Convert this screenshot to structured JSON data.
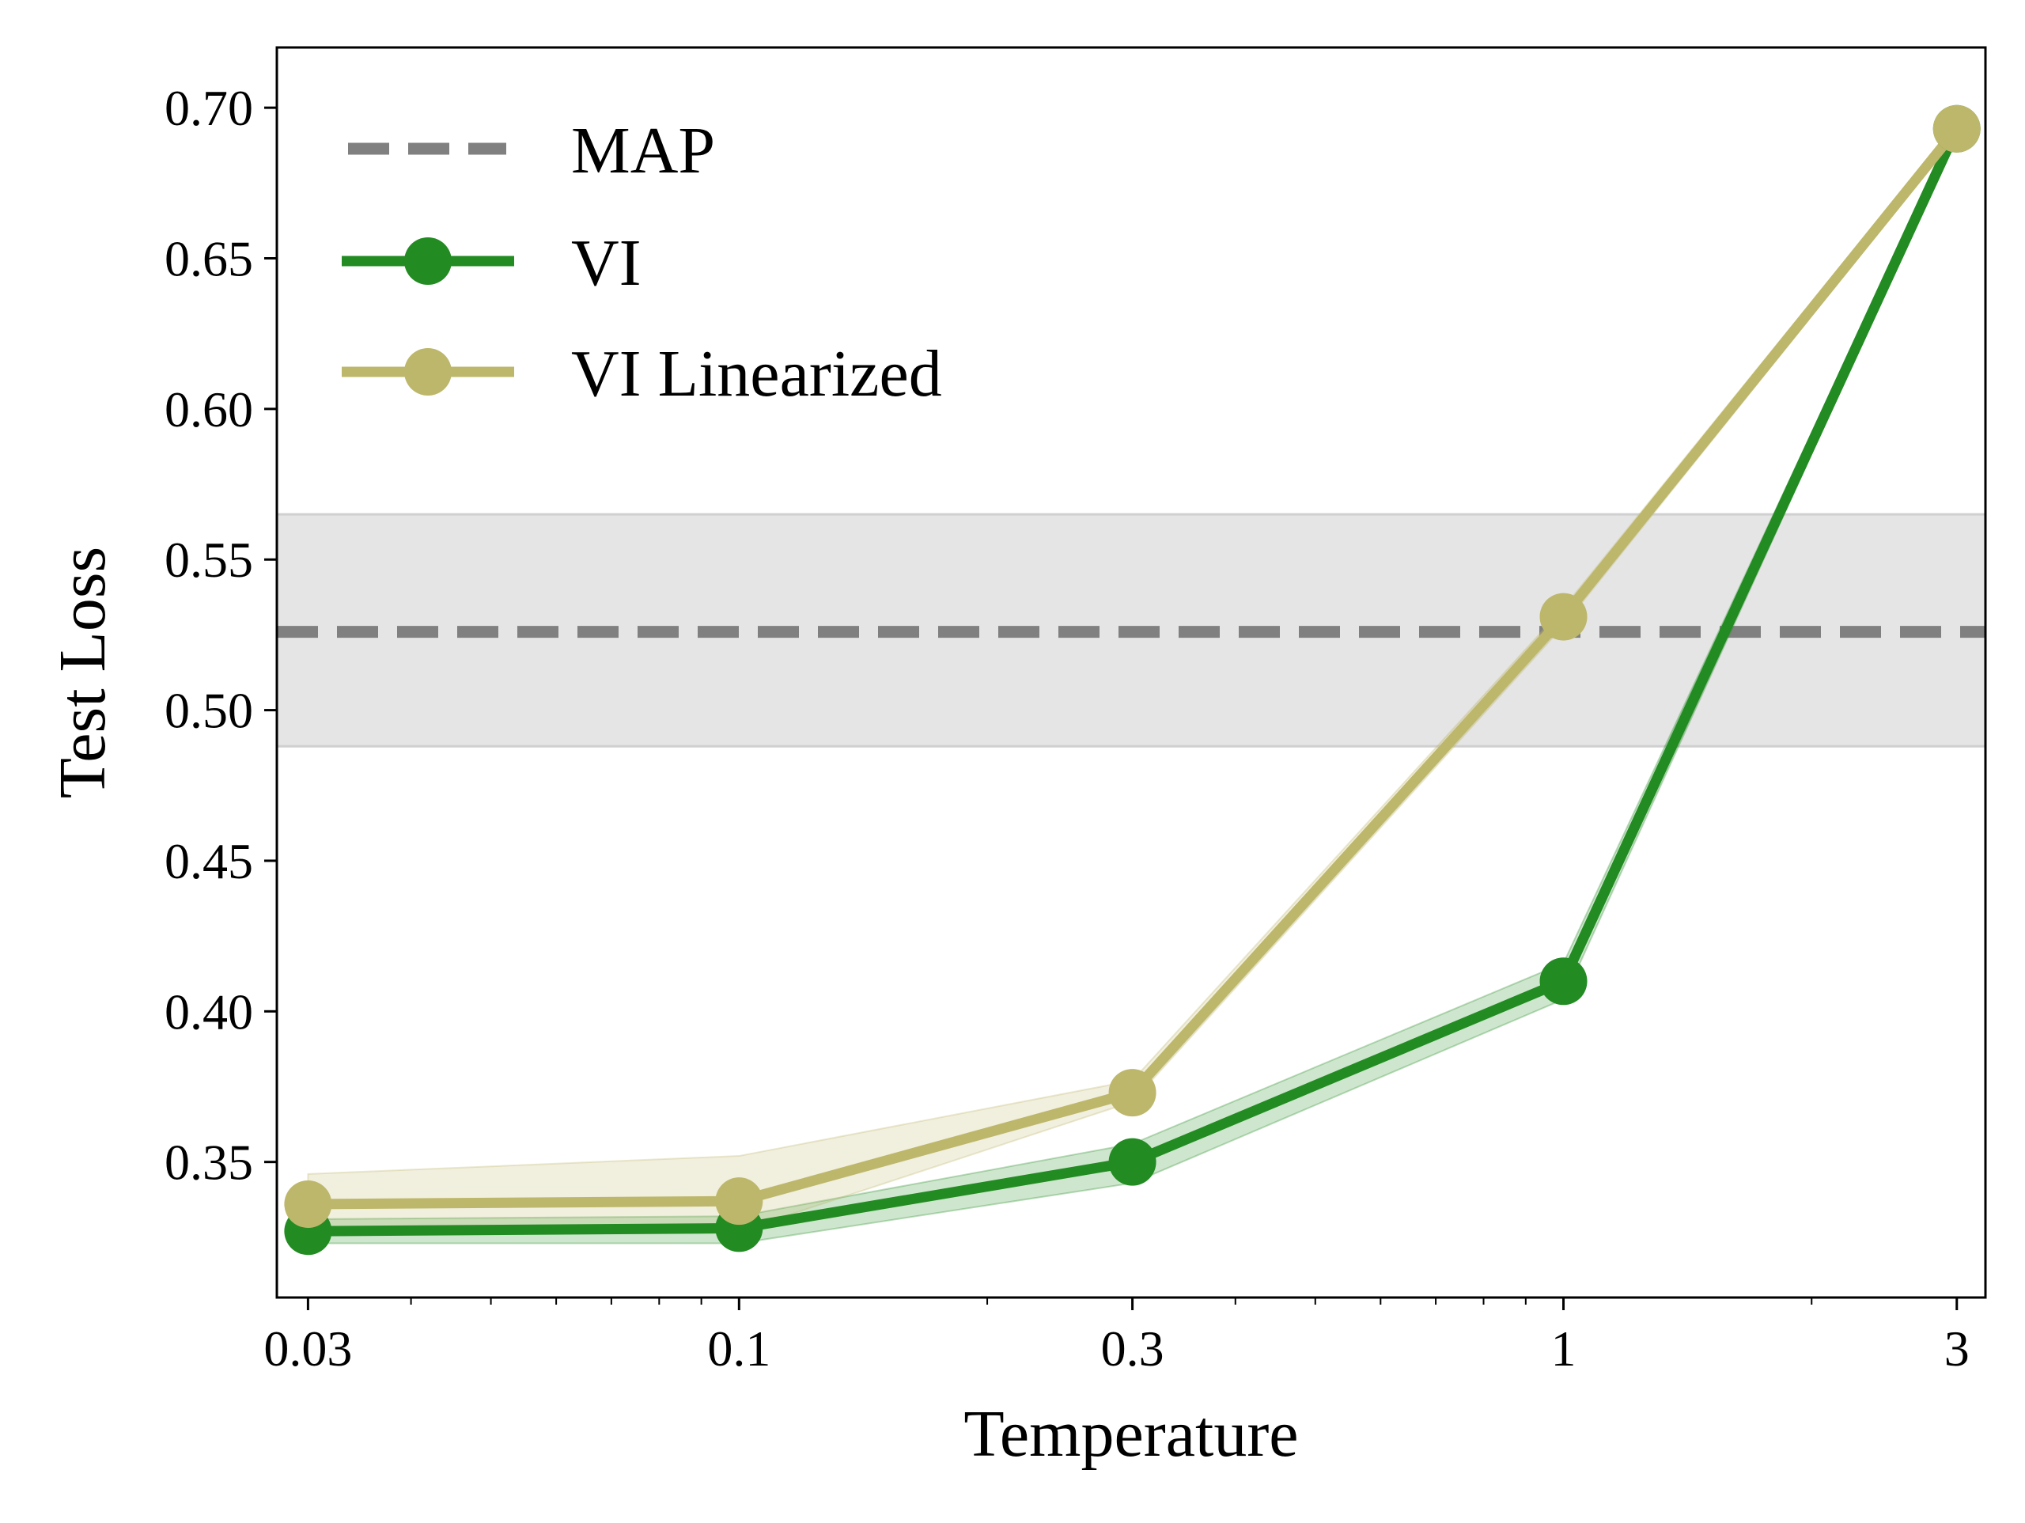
{
  "chart_data": {
    "type": "line",
    "xlabel": "Temperature",
    "ylabel": "Test Loss",
    "xscale": "log",
    "xlim": [
      0.0275,
      3.25
    ],
    "ylim": [
      0.305,
      0.72
    ],
    "grid": false,
    "legend_position": "top-left",
    "x_ticks": [
      {
        "value": 0.03,
        "label": "0.03"
      },
      {
        "value": 0.1,
        "label": "0.1"
      },
      {
        "value": 0.3,
        "label": "0.3"
      },
      {
        "value": 1,
        "label": "1"
      },
      {
        "value": 3,
        "label": "3"
      }
    ],
    "x_minor_ticks": [
      0.04,
      0.05,
      0.06,
      0.07,
      0.08,
      0.09,
      0.2,
      0.4,
      0.5,
      0.6,
      0.7,
      0.8,
      0.9,
      2
    ],
    "y_ticks": [
      {
        "value": 0.35,
        "label": "0.35"
      },
      {
        "value": 0.4,
        "label": "0.40"
      },
      {
        "value": 0.45,
        "label": "0.45"
      },
      {
        "value": 0.5,
        "label": "0.50"
      },
      {
        "value": 0.55,
        "label": "0.55"
      },
      {
        "value": 0.6,
        "label": "0.60"
      },
      {
        "value": 0.65,
        "label": "0.65"
      },
      {
        "value": 0.7,
        "label": "0.70"
      }
    ],
    "reference": {
      "name": "MAP",
      "value": 0.526,
      "band": [
        0.488,
        0.565
      ],
      "color": "#808080",
      "band_color": "#e5e5e5",
      "style": "dashed"
    },
    "series": [
      {
        "name": "VI",
        "color": "#228b22",
        "x": [
          0.03,
          0.1,
          0.3,
          1,
          3
        ],
        "y": [
          0.327,
          0.328,
          0.35,
          0.41,
          0.693
        ],
        "lower": [
          0.323,
          0.323,
          0.343,
          0.404,
          0.691
        ],
        "upper": [
          0.331,
          0.332,
          0.356,
          0.416,
          0.695
        ]
      },
      {
        "name": "VI Linearized",
        "color": "#bdb76b",
        "x": [
          0.03,
          0.1,
          0.3,
          1,
          3
        ],
        "y": [
          0.336,
          0.337,
          0.373,
          0.531,
          0.693
        ],
        "lower": [
          0.327,
          0.327,
          0.37,
          0.528,
          0.691
        ],
        "upper": [
          0.346,
          0.352,
          0.377,
          0.534,
          0.695
        ]
      }
    ]
  }
}
